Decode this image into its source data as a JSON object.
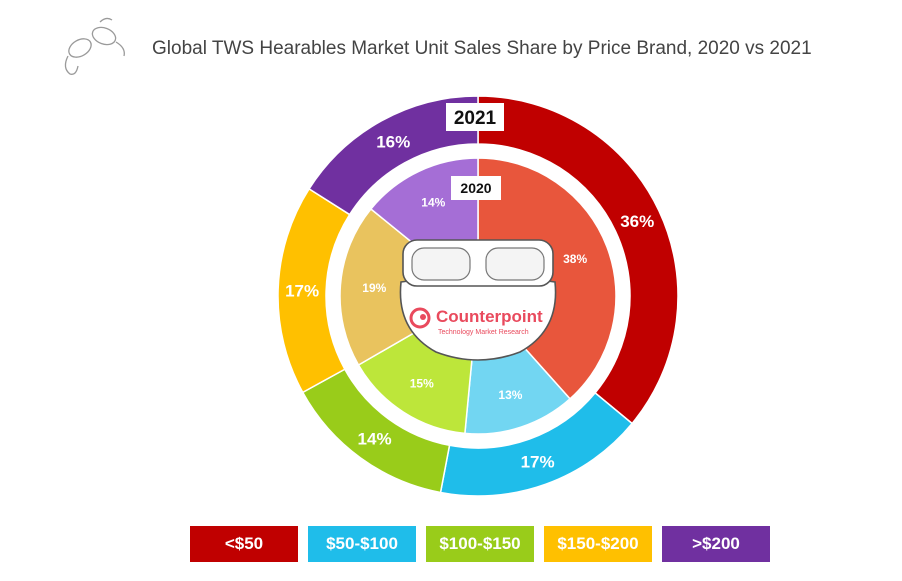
{
  "chart_data": {
    "type": "donut",
    "title": "Global TWS Hearables Market Unit Sales Share by Price Brand, 2020 vs 2021",
    "categories": [
      "<$50",
      "$50-$100",
      "$100-$150",
      "$150-$200",
      ">$200"
    ],
    "series": [
      {
        "name": "2021",
        "ring": "outer",
        "values": [
          36,
          17,
          14,
          17,
          16
        ],
        "labels": [
          "36%",
          "17%",
          "14%",
          "17%",
          "16%"
        ]
      },
      {
        "name": "2020",
        "ring": "inner",
        "values": [
          38,
          13,
          15,
          19,
          14
        ],
        "labels": [
          "38%",
          "13%",
          "15%",
          "19%",
          "14%"
        ]
      }
    ],
    "unit": "%",
    "legend_position": "bottom"
  },
  "colors": {
    "outer": [
      "#c00000",
      "#1fbdea",
      "#99cc1a",
      "#ffc000",
      "#7030a0"
    ],
    "inner": [
      "#e8563c",
      "#72d6f2",
      "#bde63a",
      "#e9c35e",
      "#a56ed6"
    ]
  },
  "branding": {
    "logo_text": "Counterpoint",
    "logo_subtext": "Technology Market Research",
    "logo_color": "#e94a5d"
  }
}
